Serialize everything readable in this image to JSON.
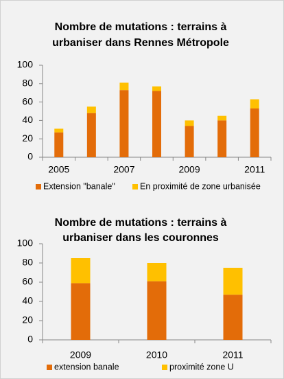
{
  "chart_data": [
    {
      "type": "bar",
      "stacked": true,
      "title": [
        "Nombre de mutations : terrains à",
        "urbaniser dans Rennes Métropole"
      ],
      "categories": [
        "2005",
        null,
        "2007",
        null,
        "2009",
        null,
        "2011"
      ],
      "series": [
        {
          "name": "Extension \"banale\"",
          "color": "#e36c09",
          "values": [
            27,
            48,
            73,
            72,
            34,
            40,
            53
          ]
        },
        {
          "name": "En proximité de zone urbanisée",
          "color": "#ffc000",
          "values": [
            4,
            7,
            8,
            5,
            6,
            5,
            10
          ]
        }
      ],
      "ylim": [
        0,
        100
      ],
      "yticks": [
        0,
        20,
        40,
        60,
        80,
        100
      ],
      "grid": false,
      "legend": "bottom"
    },
    {
      "type": "bar",
      "stacked": true,
      "title": [
        "Nombre de mutations : terrains à",
        "urbaniser dans les couronnes"
      ],
      "categories": [
        "2009",
        "2010",
        "2011"
      ],
      "series": [
        {
          "name": "extension banale",
          "color": "#e36c09",
          "values": [
            59,
            61,
            47
          ]
        },
        {
          "name": "proximité zone U",
          "color": "#ffc000",
          "values": [
            26,
            19,
            28
          ]
        }
      ],
      "ylim": [
        0,
        100
      ],
      "yticks": [
        0,
        20,
        40,
        60,
        80,
        100
      ],
      "grid": false,
      "legend": "bottom"
    }
  ]
}
